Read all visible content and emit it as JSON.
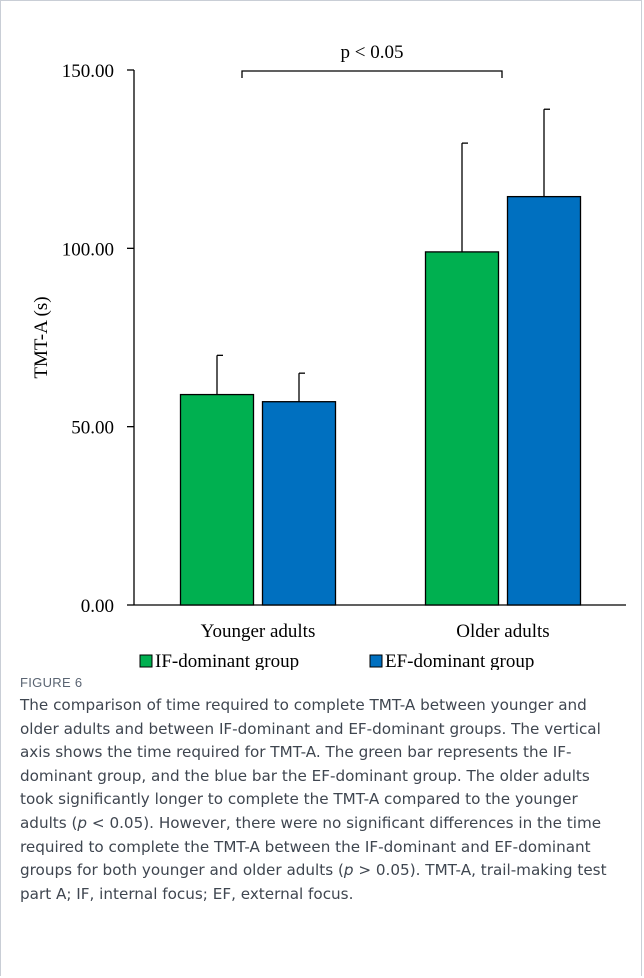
{
  "chart_data": {
    "type": "bar",
    "categories": [
      "Younger adults",
      "Older adults"
    ],
    "series": [
      {
        "name": "IF-dominant group",
        "values": [
          59.0,
          99.0
        ],
        "errors": [
          11.0,
          30.5
        ],
        "color": "#00b050"
      },
      {
        "name": "EF-dominant group",
        "values": [
          57.0,
          114.5
        ],
        "errors": [
          8.0,
          24.5
        ],
        "color": "#0070c0"
      }
    ],
    "ylabel": "TMT-A (s)",
    "xlabel": "",
    "ylim": [
      0,
      150
    ],
    "yticks": [
      0,
      50,
      100,
      150
    ],
    "ytick_labels": [
      "0.00",
      "50.00",
      "100.00",
      "150.00"
    ],
    "grid": false,
    "legend_position": "bottom",
    "annotation": {
      "text": "p < 0.05",
      "between": [
        "Younger adults",
        "Older adults"
      ]
    }
  },
  "figure": {
    "label": "FIGURE 6",
    "caption": {
      "part1": "The comparison of time required to complete TMT-A between younger and older adults and between IF-dominant and EF-dominant groups. The vertical axis shows the time required for TMT-A. The green bar represents the IF-dominant group, and the blue bar the EF-dominant group. The older adults took significantly longer to complete the TMT-A compared to the younger adults (",
      "p1": "p",
      "part2": " < 0.05). However, there were no significant differences in the time required to complete the TMT-A between the IF-dominant and EF-dominant groups for both younger and older adults (",
      "p2": "p",
      "part3": " > 0.05). TMT-A, trail-making test part A; IF, internal focus; EF, external focus."
    }
  }
}
